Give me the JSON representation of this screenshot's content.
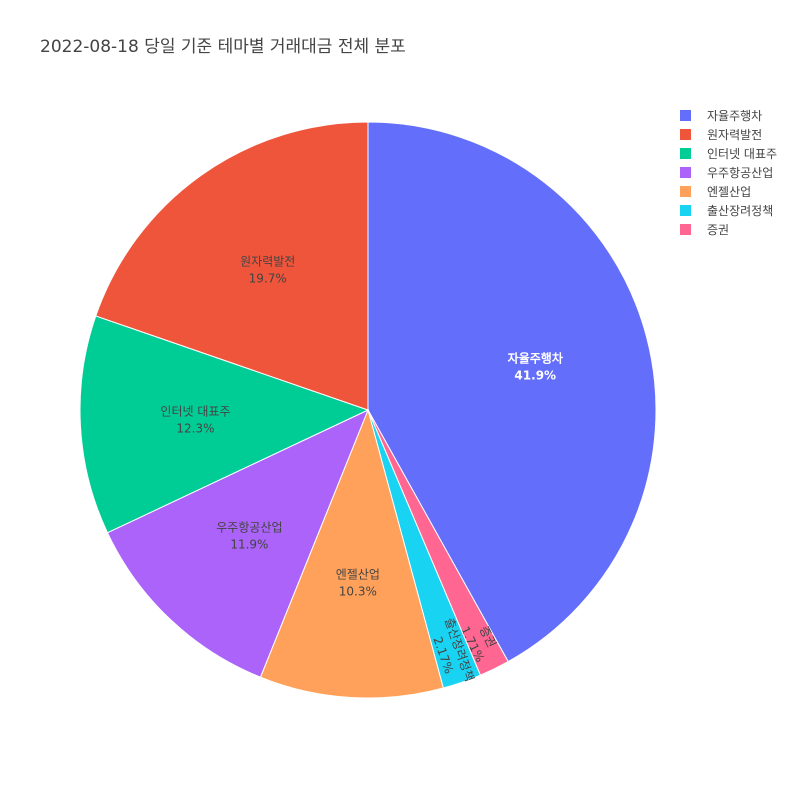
{
  "chart_data": {
    "type": "pie",
    "title": "2022-08-18 당일 기준 테마별 거래대금 전체 분포",
    "slices": [
      {
        "label": "자율주행차",
        "percent_label": "41.9%",
        "value": 41.9,
        "color": "#636efa"
      },
      {
        "label": "증권",
        "percent_label": "1.71%",
        "value": 1.71,
        "color": "#ff6692"
      },
      {
        "label": "출산장려정책",
        "percent_label": "2.17%",
        "value": 2.17,
        "color": "#19d3f3"
      },
      {
        "label": "엔젤산업",
        "percent_label": "10.3%",
        "value": 10.3,
        "color": "#ffa15a"
      },
      {
        "label": "우주항공산업",
        "percent_label": "11.9%",
        "value": 11.9,
        "color": "#ab63fa"
      },
      {
        "label": "인터넷 대표주",
        "percent_label": "12.3%",
        "value": 12.3,
        "color": "#00cc96"
      },
      {
        "label": "원자력발전",
        "percent_label": "19.7%",
        "value": 19.7,
        "color": "#ef553b"
      }
    ],
    "legend": [
      "자율주행차",
      "원자력발전",
      "인터넷 대표주",
      "우주항공산업",
      "엔젤산업",
      "출산장려정책",
      "증권"
    ],
    "legend_position": "top-right"
  }
}
